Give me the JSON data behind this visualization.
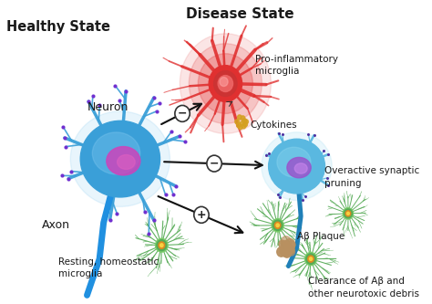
{
  "title_disease": "Disease State",
  "title_healthy": "Healthy State",
  "label_neuron": "Neuron",
  "label_axon": "Axon",
  "label_pro_inflam": "Pro-inflammatory\nmicroglia",
  "label_cytokines": "Cytokines",
  "label_overactive": "Overactive synaptic\npruning",
  "label_resting": "Resting, homeostatic\nmicroglia",
  "label_abeta": "Aβ Plaque",
  "label_clearance": "Clearance of Aβ and\nother neurotoxic debris",
  "bg_color": "#ffffff",
  "neuron_body_color": "#3a9fd8",
  "neuron_body_color2": "#2080c0",
  "neuron_nucleus_color": "#cc44bb",
  "neuron_nucleus_inner": "#e060c0",
  "neuron_glow_color": "#80c8f0",
  "neuron_dendrite_tip": "#7030d0",
  "axon_color": "#2090e0",
  "pro_inflam_color": "#e03030",
  "pro_inflam_inner": "#cc2020",
  "pro_inflam_nucleus_outer": "#dd5555",
  "pro_inflam_nucleus_inner": "#ff9999",
  "microglia_green": "#55aa55",
  "microglia_green_outer": "#77cc66",
  "microglia_orange": "#dd8820",
  "microglia_yellow": "#f8d040",
  "diseased_neuron_color": "#5ab8e0",
  "diseased_neuron_dark": "#2080b8",
  "diseased_nucleus": "#9955cc",
  "diseased_nucleus_inner": "#cc88ee",
  "arrow_color": "#111111",
  "cytokine_color": "#d4a020",
  "abeta_color": "#b89060",
  "abeta_dark": "#8a6040"
}
